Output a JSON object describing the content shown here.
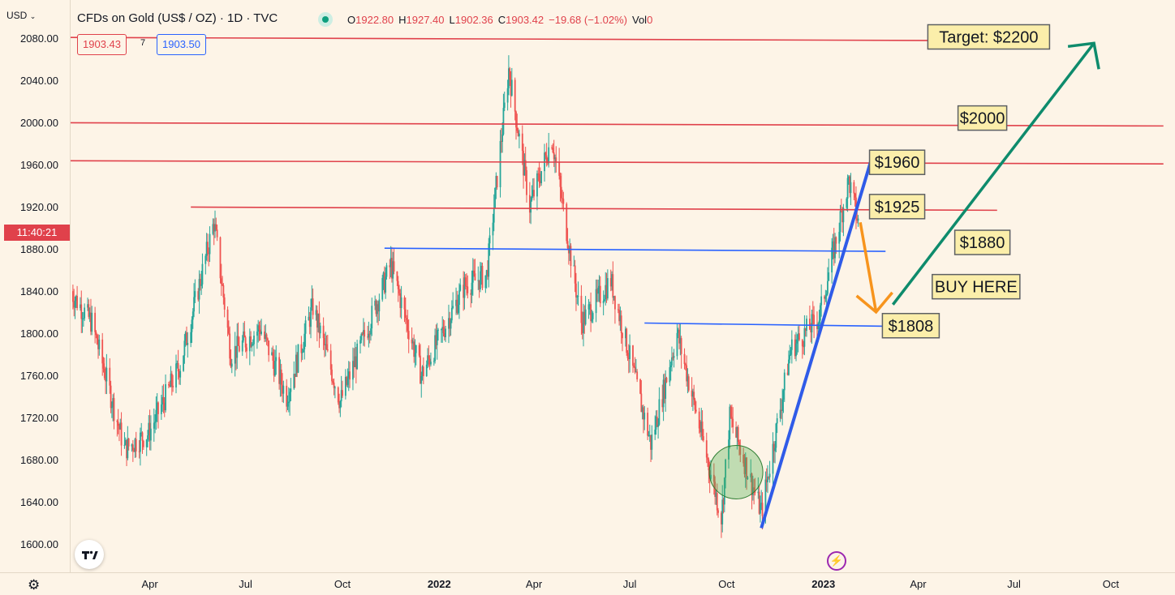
{
  "header": {
    "currency": "USD",
    "symbol_title": "CFDs on Gold (US$ / OZ) · 1D · TVC",
    "ohlc": {
      "o_label": "O",
      "o": "1922.80",
      "h_label": "H",
      "h": "1927.40",
      "l_label": "L",
      "l": "1902.36",
      "c_label": "C",
      "c": "1903.42",
      "change": "−19.68 (−1.02%)",
      "vol_label": "Vol",
      "vol": "0"
    },
    "bid": "1903.43",
    "spread": "7",
    "ask": "1903.50",
    "countdown": "11:40:21"
  },
  "colors": {
    "background": "#fdf4e7",
    "up_candle": "#26a69a",
    "down_candle": "#ef5350",
    "resistance_line": "#e0414b",
    "support_line": "#2962ff",
    "trend_line": "#2f5be8",
    "target_arrow": "#0e8b6c",
    "pullback_arrow": "#f7941d",
    "label_fill": "#fbeeaa",
    "label_border": "#5d6063",
    "zone_fill": "#4caf5080"
  },
  "icons": {
    "settings": "gear-icon",
    "logo": "tradingview-logo",
    "lightning": "lightning-icon",
    "dot": "market-status-dot"
  },
  "chart_data": {
    "type": "candlestick",
    "title": "CFDs on Gold (US$ / OZ) · 1D · TVC",
    "y_axis": {
      "ticks": [
        1600,
        1640,
        1680,
        1720,
        1760,
        1800,
        1840,
        1880,
        1920,
        1960,
        2000,
        2040,
        2080
      ],
      "tick_labels": [
        "1600.00",
        "1640.00",
        "1680.00",
        "1720.00",
        "1760.00",
        "1800.00",
        "1840.00",
        "1880.00",
        "1920.00",
        "1960.00",
        "2000.00",
        "2040.00",
        "2080.00"
      ],
      "range": [
        1573,
        2116
      ]
    },
    "x_axis": {
      "ticks": [
        "Apr",
        "Jul",
        "Oct",
        "2022",
        "Apr",
        "Jul",
        "Oct",
        "2023",
        "Apr",
        "Jul",
        "Oct"
      ],
      "bold": [
        false,
        false,
        false,
        true,
        false,
        false,
        false,
        true,
        false,
        false,
        false
      ],
      "range": [
        "2021-01-15",
        "2023-12-01"
      ]
    },
    "price_path": [
      {
        "date": "2021-01-15",
        "price": 1840
      },
      {
        "date": "2021-02-05",
        "price": 1810
      },
      {
        "date": "2021-03-08",
        "price": 1690
      },
      {
        "date": "2021-03-31",
        "price": 1705
      },
      {
        "date": "2021-04-30",
        "price": 1770
      },
      {
        "date": "2021-06-01",
        "price": 1905
      },
      {
        "date": "2021-06-17",
        "price": 1780
      },
      {
        "date": "2021-07-15",
        "price": 1805
      },
      {
        "date": "2021-08-09",
        "price": 1740
      },
      {
        "date": "2021-09-03",
        "price": 1825
      },
      {
        "date": "2021-09-29",
        "price": 1735
      },
      {
        "date": "2021-11-16",
        "price": 1865
      },
      {
        "date": "2021-12-15",
        "price": 1760
      },
      {
        "date": "2022-01-25",
        "price": 1845
      },
      {
        "date": "2022-02-15",
        "price": 1855
      },
      {
        "date": "2022-03-08",
        "price": 2050
      },
      {
        "date": "2022-03-28",
        "price": 1920
      },
      {
        "date": "2022-04-18",
        "price": 1985
      },
      {
        "date": "2022-05-16",
        "price": 1810
      },
      {
        "date": "2022-06-13",
        "price": 1850
      },
      {
        "date": "2022-07-21",
        "price": 1695
      },
      {
        "date": "2022-08-15",
        "price": 1800
      },
      {
        "date": "2022-09-26",
        "price": 1625
      },
      {
        "date": "2022-10-04",
        "price": 1720
      },
      {
        "date": "2022-11-03",
        "price": 1630
      },
      {
        "date": "2022-12-01",
        "price": 1785
      },
      {
        "date": "2022-12-28",
        "price": 1815
      },
      {
        "date": "2023-01-25",
        "price": 1945
      },
      {
        "date": "2023-02-03",
        "price": 1905
      }
    ],
    "ohlc_last": {
      "open": 1922.8,
      "high": 1927.4,
      "low": 1902.36,
      "close": 1903.42,
      "change": -19.68,
      "change_pct": -1.02
    },
    "levels": [
      {
        "label": "$2000",
        "price": 2000,
        "kind": "resistance"
      },
      {
        "label": "$1960",
        "price": 1960,
        "kind": "resistance"
      },
      {
        "label": "$1925",
        "price": 1925,
        "kind": "resistance"
      },
      {
        "label": "$1880",
        "price": 1880,
        "kind": "support"
      },
      {
        "label": "$1808",
        "price": 1808,
        "kind": "support"
      }
    ],
    "annotations": [
      {
        "text": "Target: $2200",
        "kind": "label"
      },
      {
        "text": "$2000",
        "kind": "label"
      },
      {
        "text": "$1960",
        "kind": "label"
      },
      {
        "text": "$1925",
        "kind": "label"
      },
      {
        "text": "$1880",
        "kind": "label"
      },
      {
        "text": "BUY HERE",
        "kind": "label"
      },
      {
        "text": "$1808",
        "kind": "label"
      }
    ],
    "trendline": {
      "from": {
        "date": "2022-11-03",
        "price": 1615
      },
      "to": {
        "date": "2023-02-15",
        "price": 1963
      }
    },
    "projection": {
      "pullback_to": 1820,
      "target": 2200
    },
    "accumulation_zone": {
      "date": "2022-10-10",
      "price": 1668
    },
    "grid": false
  }
}
